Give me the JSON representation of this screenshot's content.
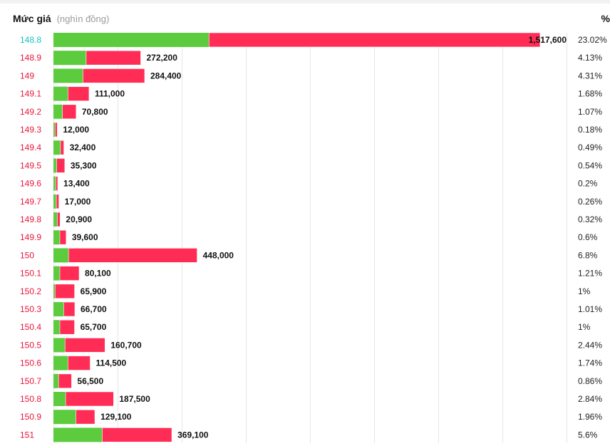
{
  "header": {
    "title": "Mức giá",
    "unit": "(nghìn đồng)",
    "pct_header": "%"
  },
  "colors": {
    "buy": "#5ccc3e",
    "sell": "#ff2d55",
    "reference_price": "#18c0c0",
    "price_up": "#e8163c",
    "grid": "#e6e6e6"
  },
  "chart_data": {
    "type": "bar",
    "orientation": "horizontal",
    "stacked": true,
    "reference_price": "148.8",
    "categories": [
      "148.8",
      "148.9",
      "149",
      "149.1",
      "149.2",
      "149.3",
      "149.4",
      "149.5",
      "149.6",
      "149.7",
      "149.8",
      "149.9",
      "150",
      "150.1",
      "150.2",
      "150.3",
      "150.4",
      "150.5",
      "150.6",
      "150.7",
      "150.8",
      "150.9",
      "151"
    ],
    "totals": [
      1517600,
      272200,
      284400,
      111000,
      70800,
      12000,
      32400,
      35300,
      13400,
      17000,
      20900,
      39600,
      448000,
      80100,
      65900,
      66700,
      65700,
      160700,
      114500,
      56500,
      187500,
      129100,
      369100
    ],
    "total_labels": [
      "1,517,600",
      "272,200",
      "284,400",
      "111,000",
      "70,800",
      "12,000",
      "32,400",
      "35,300",
      "13,400",
      "17,000",
      "20,900",
      "39,600",
      "448,000",
      "80,100",
      "65,900",
      "66,700",
      "65,700",
      "160,700",
      "114,500",
      "56,500",
      "187,500",
      "129,100",
      "369,100"
    ],
    "buy_values": [
      485000,
      102000,
      92000,
      45000,
      28000,
      5000,
      22000,
      10000,
      7000,
      9000,
      12000,
      20000,
      47000,
      20000,
      5000,
      32000,
      20000,
      36000,
      45000,
      16000,
      38000,
      70000,
      152000
    ],
    "percent_labels": [
      "23.02%",
      "4.13%",
      "4.31%",
      "1.68%",
      "1.07%",
      "0.18%",
      "0.49%",
      "0.54%",
      "0.2%",
      "0.26%",
      "0.32%",
      "0.6%",
      "6.8%",
      "1.21%",
      "1%",
      "1.01%",
      "1%",
      "2.44%",
      "1.74%",
      "0.86%",
      "2.84%",
      "1.96%",
      "5.6%"
    ],
    "xlim": [
      0,
      1600000
    ],
    "grid": true
  }
}
